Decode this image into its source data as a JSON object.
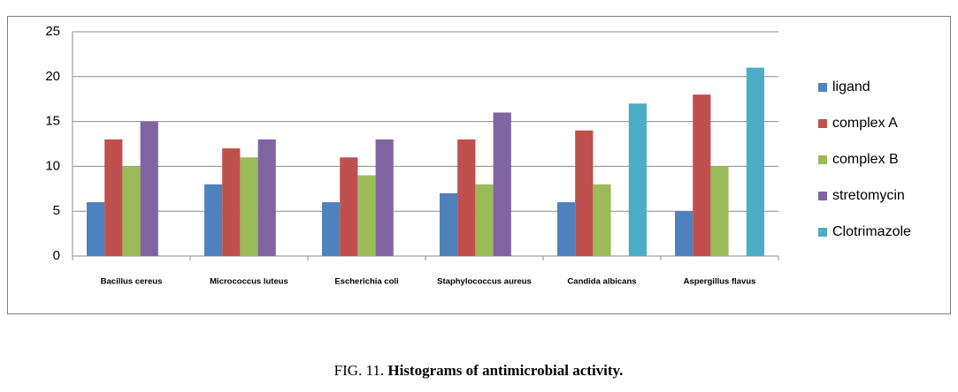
{
  "chart_data": {
    "type": "bar",
    "categories": [
      "Bacillus cereus",
      "Micrococcus luteus",
      "Escherichia coli",
      "Staphylococcus aureus",
      "Candida albicans",
      "Aspergillus flavus"
    ],
    "series": [
      {
        "name": "ligand",
        "color": "#4f81bd",
        "values": [
          6,
          8,
          6,
          7,
          6,
          5
        ]
      },
      {
        "name": "complex A",
        "color": "#c0504d",
        "values": [
          13,
          12,
          11,
          13,
          14,
          18
        ]
      },
      {
        "name": "complex B",
        "color": "#9bbb59",
        "values": [
          10,
          11,
          9,
          8,
          8,
          10
        ]
      },
      {
        "name": "stretomycin",
        "color": "#8064a2",
        "values": [
          15,
          13,
          13,
          16,
          null,
          null
        ]
      },
      {
        "name": "Clotrimazole",
        "color": "#4bacc6",
        "values": [
          null,
          null,
          null,
          null,
          17,
          21
        ]
      }
    ],
    "ylim": [
      0,
      25
    ],
    "yticks": [
      0,
      5,
      10,
      15,
      20,
      25
    ],
    "grid": true,
    "legend": "right"
  },
  "caption": {
    "label": "FIG. 11.",
    "title": "Histograms of antimicrobial activity."
  }
}
